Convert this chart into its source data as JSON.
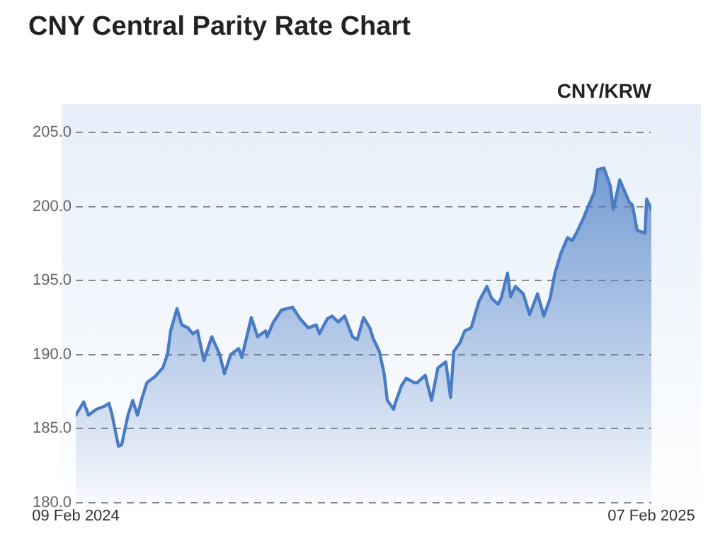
{
  "chart_data": {
    "type": "area",
    "title": "CNY Central Parity Rate Chart",
    "subtitle": "CNY/KRW",
    "x": [
      "2024-02-09",
      "2024-02-14",
      "2024-02-17",
      "2024-02-22",
      "2024-02-27",
      "2024-03-01",
      "2024-03-03",
      "2024-03-07",
      "2024-03-09",
      "2024-03-13",
      "2024-03-16",
      "2024-03-19",
      "2024-03-22",
      "2024-03-25",
      "2024-03-30",
      "2024-04-04",
      "2024-04-07",
      "2024-04-09",
      "2024-04-13",
      "2024-04-16",
      "2024-04-20",
      "2024-04-23",
      "2024-04-26",
      "2024-04-30",
      "2024-05-05",
      "2024-05-10",
      "2024-05-13",
      "2024-05-17",
      "2024-05-22",
      "2024-05-24",
      "2024-05-30",
      "2024-06-03",
      "2024-06-08",
      "2024-06-09",
      "2024-06-13",
      "2024-06-18",
      "2024-06-25",
      "2024-06-30",
      "2024-07-05",
      "2024-07-10",
      "2024-07-12",
      "2024-07-17",
      "2024-07-20",
      "2024-07-24",
      "2024-07-28",
      "2024-08-02",
      "2024-08-05",
      "2024-08-09",
      "2024-08-13",
      "2024-08-15",
      "2024-08-19",
      "2024-08-22",
      "2024-08-24",
      "2024-08-28",
      "2024-08-29",
      "2024-09-02",
      "2024-09-05",
      "2024-09-10",
      "2024-09-12",
      "2024-09-17",
      "2024-09-21",
      "2024-09-25",
      "2024-09-30",
      "2024-10-03",
      "2024-10-05",
      "2024-10-09",
      "2024-10-12",
      "2024-10-16",
      "2024-10-21",
      "2024-10-26",
      "2024-10-29",
      "2024-11-02",
      "2024-11-04",
      "2024-11-08",
      "2024-11-10",
      "2024-11-13",
      "2024-11-18",
      "2024-11-22",
      "2024-11-27",
      "2024-12-01",
      "2024-12-05",
      "2024-12-08",
      "2024-12-12",
      "2024-12-16",
      "2024-12-19",
      "2024-12-22",
      "2024-12-26",
      "2024-12-29",
      "2025-01-02",
      "2025-01-04",
      "2025-01-08",
      "2025-01-12",
      "2025-01-14",
      "2025-01-18",
      "2025-01-24",
      "2025-01-26",
      "2025-01-29",
      "2025-02-03",
      "2025-02-04",
      "2025-02-07"
    ],
    "series": [
      {
        "color": "#4a7cc4",
        "values": [
          185.9,
          186.8,
          185.9,
          186.3,
          186.5,
          186.7,
          185.9,
          183.8,
          183.9,
          185.9,
          186.9,
          185.9,
          187.1,
          188.1,
          188.5,
          189.1,
          190.0,
          191.6,
          193.1,
          192.0,
          191.8,
          191.4,
          191.6,
          189.6,
          191.2,
          190.0,
          188.7,
          190.0,
          190.4,
          189.8,
          192.5,
          191.2,
          191.6,
          191.2,
          192.2,
          193.0,
          193.2,
          192.4,
          191.8,
          192.0,
          191.4,
          192.4,
          192.6,
          192.2,
          192.6,
          191.2,
          191.0,
          192.5,
          191.8,
          191.1,
          190.2,
          188.7,
          186.9,
          186.3,
          186.7,
          187.9,
          188.4,
          188.1,
          188.1,
          188.6,
          186.9,
          189.1,
          189.5,
          187.1,
          190.2,
          190.8,
          191.6,
          191.8,
          193.6,
          194.6,
          193.8,
          193.4,
          193.8,
          195.5,
          193.9,
          194.6,
          194.1,
          192.7,
          194.1,
          192.6,
          193.8,
          195.5,
          196.9,
          197.9,
          197.7,
          198.3,
          199.2,
          200.0,
          201.0,
          202.5,
          202.6,
          201.4,
          199.8,
          201.8,
          200.3,
          200.1,
          198.4,
          198.2,
          200.5,
          199.8
        ]
      }
    ],
    "xlim": [
      "2024-02-09",
      "2025-02-07"
    ],
    "xticks": [
      {
        "value": "2024-02-09",
        "label": "09 Feb 2024"
      },
      {
        "value": "2025-02-07",
        "label": "07 Feb 2025"
      }
    ],
    "ylim": [
      180,
      205
    ],
    "yticks": [
      {
        "value": 180,
        "label": "180.0"
      },
      {
        "value": 185,
        "label": "185.0"
      },
      {
        "value": 190,
        "label": "190.0"
      },
      {
        "value": 195,
        "label": "195.0"
      },
      {
        "value": 200,
        "label": "200.0"
      },
      {
        "value": 205,
        "label": "205.0"
      }
    ],
    "grid": "y",
    "marker": "none",
    "line_style": "solid",
    "legend": false
  }
}
